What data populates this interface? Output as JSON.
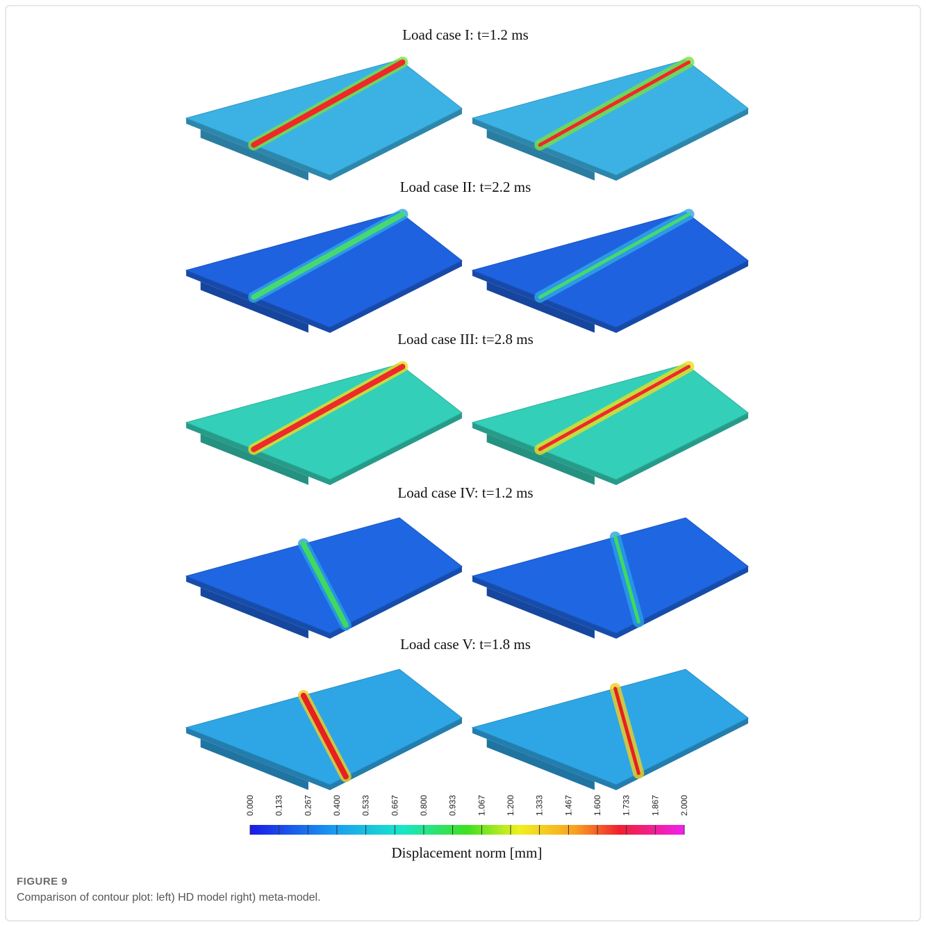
{
  "figure": {
    "panels": [
      {
        "title": "Load case I: t=1.2 ms"
      },
      {
        "title": "Load case II: t=2.2 ms"
      },
      {
        "title": "Load case III: t=2.8 ms"
      },
      {
        "title": "Load case IV: t=1.2 ms"
      },
      {
        "title": "Load case V: t=1.8 ms"
      }
    ],
    "colorbar": {
      "label": "Displacement norm [mm]",
      "lim": [
        0,
        2
      ],
      "ticks": [
        {
          "value": 0,
          "label": "0.000"
        },
        {
          "value": 0.133,
          "label": "0.133"
        },
        {
          "value": 0.267,
          "label": "0.267"
        },
        {
          "value": 0.4,
          "label": "0.400"
        },
        {
          "value": 0.533,
          "label": "0.533"
        },
        {
          "value": 0.667,
          "label": "0.667"
        },
        {
          "value": 0.8,
          "label": "0.800"
        },
        {
          "value": 0.933,
          "label": "0.933"
        },
        {
          "value": 1.067,
          "label": "1.067"
        },
        {
          "value": 1.2,
          "label": "1.200"
        },
        {
          "value": 1.333,
          "label": "1.333"
        },
        {
          "value": 1.467,
          "label": "1.467"
        },
        {
          "value": 1.6,
          "label": "1.600"
        },
        {
          "value": 1.733,
          "label": "1.733"
        },
        {
          "value": 1.867,
          "label": "1.867"
        },
        {
          "value": 2,
          "label": "2.000"
        }
      ]
    },
    "caption": {
      "label": "FIGURE 9",
      "text": "Comparison of contour plot: left) HD model right) meta-model."
    }
  }
}
